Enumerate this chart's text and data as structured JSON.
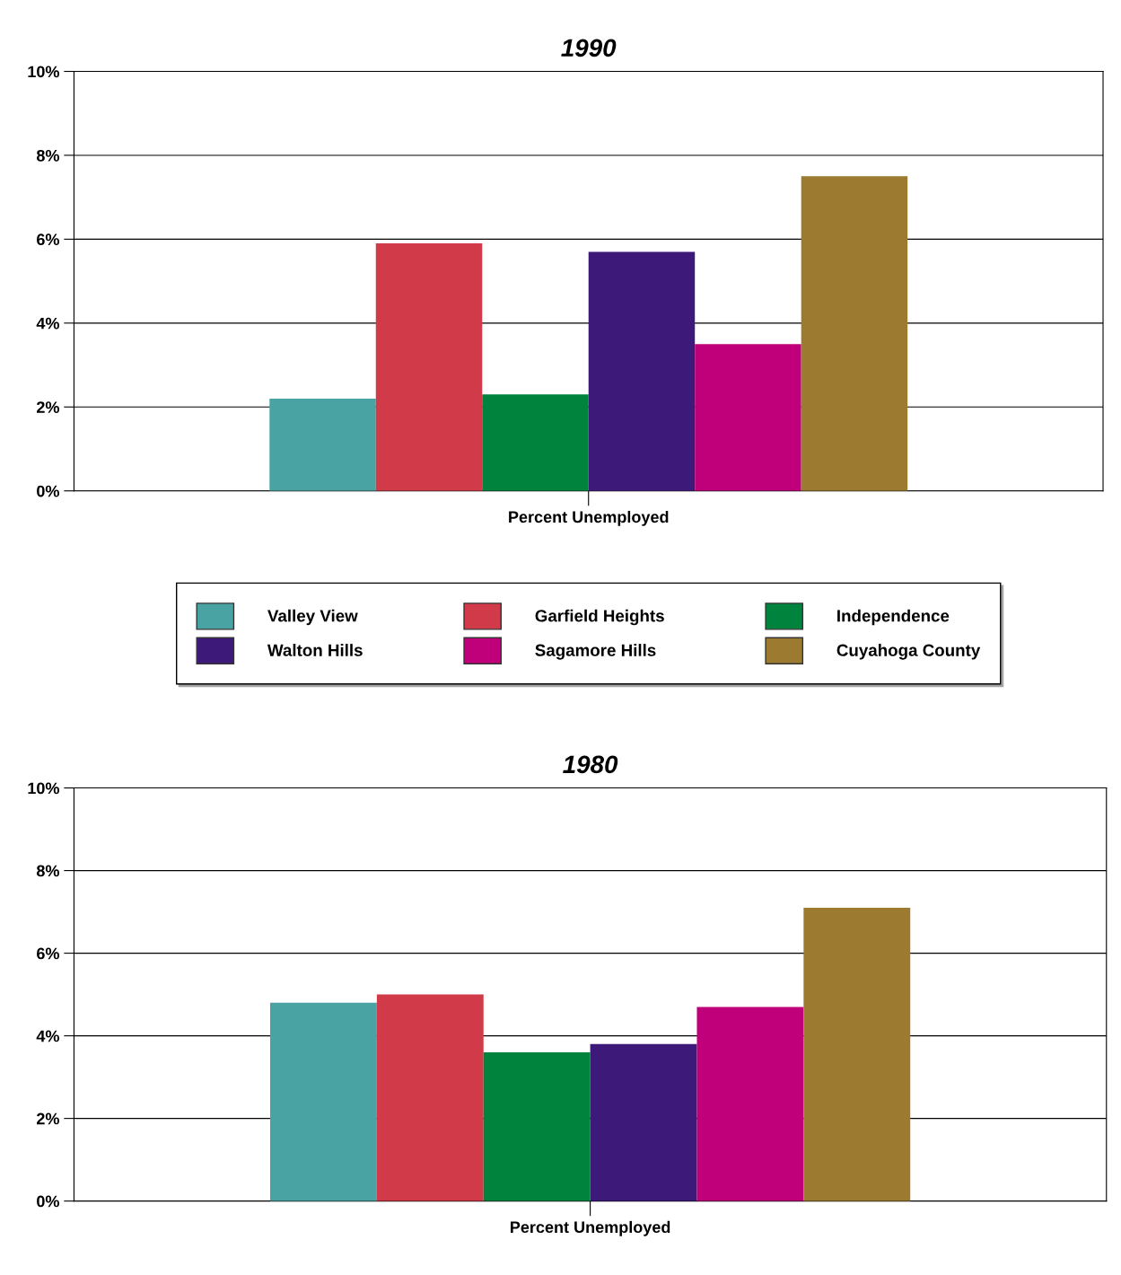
{
  "chart_data": [
    {
      "type": "bar",
      "title": "1990",
      "categories": [
        "Percent Unemployed"
      ],
      "ylim": [
        0,
        10
      ],
      "yticks": [
        {
          "value": 0,
          "label": "0%"
        },
        {
          "value": 2,
          "label": "2%"
        },
        {
          "value": 4,
          "label": "4%"
        },
        {
          "value": 6,
          "label": "6%"
        },
        {
          "value": 8,
          "label": "8%"
        },
        {
          "value": 10,
          "label": "10%"
        }
      ],
      "grid": "y",
      "legend": "bottom",
      "series": [
        {
          "name": "Valley View",
          "color": "#4aa3a3",
          "values": [
            2.2
          ]
        },
        {
          "name": "Garfield Heights",
          "color": "#d13a48",
          "values": [
            5.9
          ]
        },
        {
          "name": "Independence",
          "color": "#00843d",
          "values": [
            2.3
          ]
        },
        {
          "name": "Walton Hills",
          "color": "#3d1a7a",
          "values": [
            5.7
          ]
        },
        {
          "name": "Sagamore Hills",
          "color": "#c0007a",
          "values": [
            3.5
          ]
        },
        {
          "name": "Cuyahoga County",
          "color": "#9c7b30",
          "values": [
            7.5
          ]
        }
      ]
    },
    {
      "type": "bar",
      "title": "1980",
      "categories": [
        "Percent Unemployed"
      ],
      "ylim": [
        0,
        10
      ],
      "yticks": [
        {
          "value": 0,
          "label": "0%"
        },
        {
          "value": 2,
          "label": "2%"
        },
        {
          "value": 4,
          "label": "4%"
        },
        {
          "value": 6,
          "label": "6%"
        },
        {
          "value": 8,
          "label": "8%"
        },
        {
          "value": 10,
          "label": "10%"
        }
      ],
      "grid": "y",
      "series": [
        {
          "color": "#4aa3a3",
          "values": [
            4.8
          ]
        },
        {
          "color": "#d13a48",
          "values": [
            5.0
          ]
        },
        {
          "color": "#00843d",
          "values": [
            3.6
          ]
        },
        {
          "color": "#3d1a7a",
          "values": [
            3.8
          ]
        },
        {
          "color": "#c0007a",
          "values": [
            4.7
          ]
        },
        {
          "color": "#9c7b30",
          "values": [
            7.1
          ]
        }
      ]
    }
  ]
}
